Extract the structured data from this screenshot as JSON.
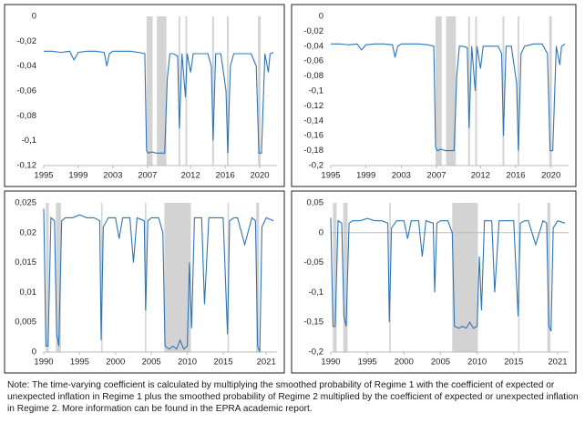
{
  "chart_data": [
    {
      "type": "line",
      "color": "#2e75b6",
      "shade_color": "#d3d3d3",
      "xlim": [
        1995,
        2022
      ],
      "ylim": [
        -0.12,
        0
      ],
      "xticks": [
        1995,
        1999,
        2003,
        2007,
        2012,
        2016,
        2020
      ],
      "yticks": [
        0,
        {
          "value": -0.02,
          "label": "-0,02"
        },
        {
          "value": -0.04,
          "label": "-0,04"
        },
        {
          "value": -0.06,
          "label": "-0,06"
        },
        {
          "value": -0.08,
          "label": "-0,08"
        },
        {
          "value": -0.1,
          "label": "-0,1"
        },
        {
          "value": -0.12,
          "label": "-0,12"
        }
      ],
      "shaded": [
        [
          2006.9,
          2007.6
        ],
        [
          2008.1,
          2009.2
        ],
        [
          2010.6,
          2010.8
        ],
        [
          2011.4,
          2011.6
        ],
        [
          2014.5,
          2014.7
        ],
        [
          2016.2,
          2016.4
        ],
        [
          2019.8,
          2020.1
        ]
      ],
      "x": [
        1995,
        1996,
        1997,
        1998,
        1998.5,
        1999,
        2000,
        2001,
        2002,
        2002.3,
        2002.6,
        2003,
        2004,
        2005,
        2006,
        2006.7,
        2006.9,
        2007.1,
        2007.5,
        2008,
        2008.5,
        2009,
        2009.3,
        2009.6,
        2010,
        2010.5,
        2010.7,
        2011,
        2011.4,
        2011.6,
        2012,
        2012.3,
        2013,
        2014,
        2014.4,
        2014.6,
        2014.9,
        2015.5,
        2016.1,
        2016.3,
        2016.6,
        2017,
        2018,
        2019,
        2019.6,
        2019.9,
        2020.2,
        2020.6,
        2021,
        2021.2,
        2021.6
      ],
      "values": [
        -0.028,
        -0.028,
        -0.029,
        -0.028,
        -0.035,
        -0.029,
        -0.028,
        -0.028,
        -0.029,
        -0.04,
        -0.03,
        -0.028,
        -0.028,
        -0.028,
        -0.029,
        -0.03,
        -0.108,
        -0.11,
        -0.109,
        -0.11,
        -0.11,
        -0.11,
        -0.05,
        -0.03,
        -0.03,
        -0.032,
        -0.09,
        -0.03,
        -0.065,
        -0.03,
        -0.045,
        -0.03,
        -0.03,
        -0.03,
        -0.04,
        -0.1,
        -0.03,
        -0.03,
        -0.06,
        -0.11,
        -0.04,
        -0.03,
        -0.03,
        -0.03,
        -0.04,
        -0.11,
        -0.11,
        -0.03,
        -0.045,
        -0.03,
        -0.029
      ]
    },
    {
      "type": "line",
      "color": "#2e75b6",
      "shade_color": "#d3d3d3",
      "xlim": [
        1995,
        2022
      ],
      "ylim": [
        -0.2,
        0
      ],
      "xticks": [
        1995,
        1999,
        2003,
        2007,
        2012,
        2016,
        2020
      ],
      "yticks": [
        0,
        {
          "value": -0.02,
          "label": "-0,02"
        },
        {
          "value": -0.04,
          "label": "-0,04"
        },
        {
          "value": -0.06,
          "label": "-0,06"
        },
        {
          "value": -0.08,
          "label": "-0,08"
        },
        {
          "value": -0.1,
          "label": "-0,1"
        },
        {
          "value": -0.12,
          "label": "-0,12"
        },
        {
          "value": -0.14,
          "label": "-0,14"
        },
        {
          "value": -0.16,
          "label": "-0,16"
        },
        {
          "value": -0.18,
          "label": "-0,18"
        },
        {
          "value": -0.2,
          "label": "-0,2"
        }
      ],
      "shaded": [
        [
          2006.9,
          2007.6
        ],
        [
          2008.1,
          2009.2
        ],
        [
          2010.6,
          2010.8
        ],
        [
          2011.4,
          2011.6
        ],
        [
          2014.5,
          2014.7
        ],
        [
          2016.2,
          2016.4
        ],
        [
          2019.8,
          2020.1
        ]
      ],
      "x": [
        1995,
        1996,
        1997,
        1998,
        1998.5,
        1999,
        2000,
        2001,
        2002,
        2002.3,
        2002.6,
        2003,
        2004,
        2005,
        2006,
        2006.7,
        2006.9,
        2007.1,
        2007.5,
        2008,
        2008.5,
        2009,
        2009.3,
        2009.6,
        2010,
        2010.5,
        2010.7,
        2011,
        2011.4,
        2011.6,
        2012,
        2012.3,
        2013,
        2014,
        2014.4,
        2014.6,
        2014.9,
        2015.5,
        2016.1,
        2016.3,
        2016.6,
        2017,
        2018,
        2019,
        2019.6,
        2019.9,
        2020.2,
        2020.6,
        2021,
        2021.2,
        2021.6
      ],
      "values": [
        -0.037,
        -0.037,
        -0.038,
        -0.037,
        -0.045,
        -0.038,
        -0.037,
        -0.037,
        -0.038,
        -0.055,
        -0.04,
        -0.037,
        -0.037,
        -0.037,
        -0.038,
        -0.04,
        -0.175,
        -0.18,
        -0.178,
        -0.18,
        -0.18,
        -0.18,
        -0.08,
        -0.04,
        -0.04,
        -0.042,
        -0.15,
        -0.04,
        -0.1,
        -0.04,
        -0.07,
        -0.04,
        -0.04,
        -0.04,
        -0.05,
        -0.16,
        -0.04,
        -0.04,
        -0.09,
        -0.18,
        -0.05,
        -0.04,
        -0.037,
        -0.037,
        -0.05,
        -0.18,
        -0.18,
        -0.04,
        -0.065,
        -0.04,
        -0.037
      ]
    },
    {
      "type": "line",
      "color": "#2e75b6",
      "shade_color": "#d3d3d3",
      "xlim": [
        1990,
        2022.5
      ],
      "ylim": [
        0,
        0.025
      ],
      "xticks": [
        1990,
        1995,
        2000,
        2005,
        2010,
        2015,
        2021
      ],
      "yticks": [
        0,
        {
          "value": 0.005,
          "label": "0,005"
        },
        {
          "value": 0.01,
          "label": "0,01"
        },
        {
          "value": 0.015,
          "label": "0,015"
        },
        {
          "value": 0.02,
          "label": "0,02"
        },
        {
          "value": 0.025,
          "label": "0,025"
        }
      ],
      "shaded": [
        [
          1990.3,
          1990.7
        ],
        [
          1991.7,
          1992.4
        ],
        [
          1998,
          1998.2
        ],
        [
          2004.1,
          2004.3
        ],
        [
          2006.8,
          2010.5
        ],
        [
          2015.6,
          2015.8
        ],
        [
          2019.6,
          2020
        ]
      ],
      "x": [
        1990,
        1990.3,
        1990.6,
        1991,
        1991.5,
        1991.8,
        1992.1,
        1992.5,
        1993,
        1994,
        1995,
        1996,
        1997,
        1997.8,
        1998,
        1998.3,
        1999,
        2000,
        2000.5,
        2001,
        2002,
        2002.5,
        2003,
        2004,
        2004.2,
        2004.5,
        2005,
        2006,
        2006.6,
        2006.9,
        2007.5,
        2008,
        2008.5,
        2009,
        2009.5,
        2010,
        2010.3,
        2010.6,
        2011,
        2012,
        2012.4,
        2013,
        2014,
        2015,
        2015.6,
        2015.9,
        2016.5,
        2017,
        2018,
        2019,
        2019.5,
        2019.8,
        2020.1,
        2020.4,
        2021,
        2022
      ],
      "values": [
        0.024,
        0.001,
        0.001,
        0.0225,
        0.022,
        0.003,
        0.001,
        0.022,
        0.0225,
        0.0225,
        0.023,
        0.0225,
        0.0225,
        0.022,
        0.002,
        0.021,
        0.0225,
        0.0225,
        0.019,
        0.0225,
        0.0225,
        0.015,
        0.0225,
        0.022,
        0.007,
        0.022,
        0.0225,
        0.0225,
        0.02,
        0.001,
        0.0005,
        0.001,
        0.0005,
        0.002,
        0.0005,
        0.001,
        0.015,
        0.004,
        0.0225,
        0.0225,
        0.008,
        0.0225,
        0.0225,
        0.0225,
        0.003,
        0.022,
        0.0225,
        0.0225,
        0.018,
        0.0225,
        0.022,
        0.001,
        0,
        0.021,
        0.0225,
        0.022
      ]
    },
    {
      "type": "line",
      "color": "#2e75b6",
      "shade_color": "#d3d3d3",
      "xlim": [
        1990,
        2022.5
      ],
      "ylim": [
        -0.2,
        0.05
      ],
      "xticks": [
        1990,
        1995,
        2000,
        2005,
        2010,
        2015,
        2021
      ],
      "yticks": [
        {
          "value": 0.05,
          "label": "0,05"
        },
        0,
        {
          "value": -0.05,
          "label": "-0,05"
        },
        {
          "value": -0.1,
          "label": "-0,1"
        },
        {
          "value": -0.15,
          "label": "-0,15"
        },
        {
          "value": -0.2,
          "label": "-0,2"
        }
      ],
      "shaded": [
        [
          1990.3,
          1990.8
        ],
        [
          1991.7,
          1992.3
        ],
        [
          1998,
          1998.2
        ],
        [
          2006.6,
          2010.1
        ],
        [
          2015.6,
          2015.8
        ],
        [
          2019.6,
          2020
        ]
      ],
      "x": [
        1990,
        1990.3,
        1990.6,
        1991,
        1991.5,
        1991.8,
        1992.1,
        1992.5,
        1993,
        1994,
        1995,
        1996,
        1997,
        1997.8,
        1998,
        1998.3,
        1999,
        2000,
        2000.5,
        2001,
        2002,
        2002.5,
        2003,
        2004,
        2004.2,
        2004.5,
        2005,
        2006,
        2006.6,
        2006.9,
        2007.5,
        2008,
        2008.5,
        2009,
        2009.5,
        2010,
        2010.3,
        2010.6,
        2011,
        2012,
        2012.4,
        2013,
        2014,
        2015,
        2015.6,
        2015.9,
        2016.5,
        2017,
        2018,
        2019,
        2019.5,
        2019.8,
        2020.1,
        2020.4,
        2021,
        2022
      ],
      "values": [
        0.025,
        -0.157,
        -0.157,
        0.02,
        0.016,
        -0.14,
        -0.157,
        0.016,
        0.02,
        0.02,
        0.024,
        0.02,
        0.02,
        0.016,
        -0.15,
        0.008,
        0.02,
        0.02,
        -0.01,
        0.02,
        0.02,
        -0.04,
        0.02,
        0.016,
        -0.1,
        0.016,
        0.02,
        0.02,
        0,
        -0.157,
        -0.16,
        -0.157,
        -0.16,
        -0.15,
        -0.16,
        -0.157,
        -0.04,
        -0.13,
        0.02,
        0.02,
        -0.1,
        0.02,
        0.02,
        0.02,
        -0.14,
        0.016,
        0.02,
        0.02,
        -0.02,
        0.02,
        0.016,
        -0.157,
        -0.165,
        0.008,
        0.02,
        0.016
      ]
    }
  ],
  "note": "Note: The time-varying coefficient is calculated by multiplying the smoothed probability of Regime 1 with the coefficient of expected or unexpected inflation in Regime 1 plus the smoothed probability of Regime 2 multiplied by the coefficient of expected or unexpected inflation in Regime 2. More information can be found in the EPRA academic report."
}
